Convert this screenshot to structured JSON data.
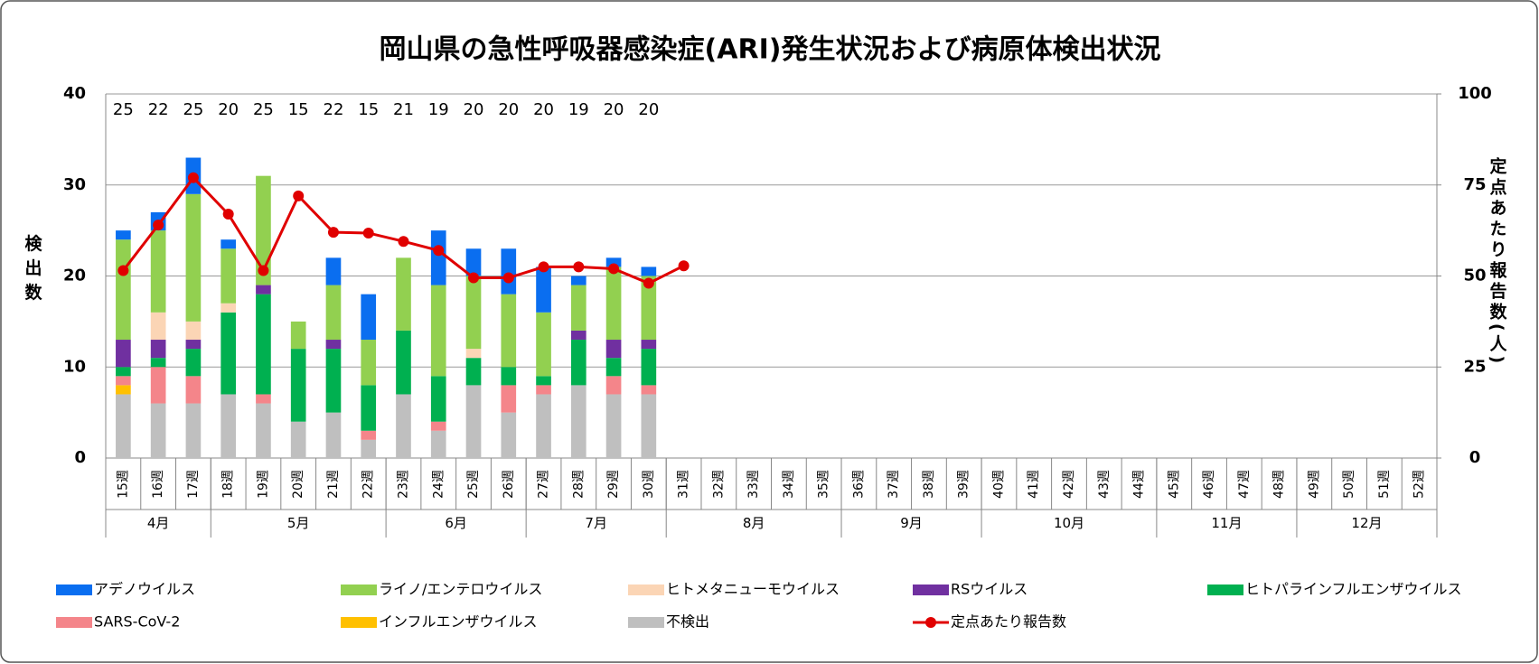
{
  "chart_data": {
    "type": "bar",
    "stacked": true,
    "title": "岡山県の急性呼吸器感染症(ARI)発生状況および病原体検出状況",
    "ylabel": "検出数",
    "y2label": "定点あたり報告数(人)",
    "categories": [
      "15週",
      "16週",
      "17週",
      "18週",
      "19週",
      "20週",
      "21週",
      "22週",
      "23週",
      "24週",
      "25週",
      "26週",
      "27週",
      "28週",
      "29週",
      "30週",
      "31週",
      "32週",
      "33週",
      "34週",
      "35週",
      "36週",
      "37週",
      "38週",
      "39週",
      "40週",
      "41週",
      "42週",
      "43週",
      "44週",
      "45週",
      "46週",
      "47週",
      "48週",
      "49週",
      "50週",
      "51週",
      "52週"
    ],
    "months": [
      "4月",
      null,
      null,
      "5月",
      null,
      null,
      null,
      null,
      "6月",
      null,
      null,
      null,
      "7月",
      null,
      null,
      null,
      "8月",
      null,
      null,
      null,
      null,
      "9月",
      null,
      null,
      null,
      "10月",
      null,
      null,
      null,
      null,
      "11月",
      null,
      null,
      null,
      "12月",
      null,
      null,
      null
    ],
    "sample_counts": [
      25,
      22,
      25,
      20,
      25,
      15,
      22,
      15,
      21,
      19,
      20,
      20,
      20,
      19,
      20,
      20,
      null,
      null,
      null,
      null,
      null,
      null,
      null,
      null,
      null,
      null,
      null,
      null,
      null,
      null,
      null,
      null,
      null,
      null,
      null,
      null,
      null,
      null
    ],
    "ylim": [
      0,
      40
    ],
    "yticks": [
      0,
      10,
      20,
      30,
      40
    ],
    "y2lim": [
      0,
      100
    ],
    "y2ticks": [
      0,
      25,
      50,
      75,
      100
    ],
    "grid": true,
    "legend": "bottom",
    "series": [
      {
        "name": "アデノウイルス",
        "color": "#0a6ef0",
        "values": [
          1,
          2,
          4,
          1,
          0,
          0,
          3,
          5,
          0,
          6,
          3,
          5,
          5,
          1,
          1,
          1,
          null,
          null,
          null,
          null,
          null,
          null,
          null,
          null,
          null,
          null,
          null,
          null,
          null,
          null,
          null,
          null,
          null,
          null,
          null,
          null,
          null,
          null
        ]
      },
      {
        "name": "ライノ/エンテロウイルス",
        "color": "#92d050",
        "values": [
          11,
          9,
          14,
          6,
          12,
          3,
          6,
          5,
          8,
          10,
          8,
          8,
          7,
          5,
          8,
          7,
          null,
          null,
          null,
          null,
          null,
          null,
          null,
          null,
          null,
          null,
          null,
          null,
          null,
          null,
          null,
          null,
          null,
          null,
          null,
          null,
          null,
          null
        ]
      },
      {
        "name": "ヒトメタニューモウイルス",
        "color": "#fbd5b5",
        "values": [
          0,
          3,
          2,
          1,
          0,
          0,
          0,
          0,
          0,
          0,
          1,
          0,
          0,
          0,
          0,
          0,
          null,
          null,
          null,
          null,
          null,
          null,
          null,
          null,
          null,
          null,
          null,
          null,
          null,
          null,
          null,
          null,
          null,
          null,
          null,
          null,
          null,
          null
        ]
      },
      {
        "name": "RSウイルス",
        "color": "#7030a0",
        "values": [
          3,
          2,
          1,
          0,
          1,
          0,
          1,
          0,
          0,
          0,
          0,
          0,
          0,
          1,
          2,
          1,
          null,
          null,
          null,
          null,
          null,
          null,
          null,
          null,
          null,
          null,
          null,
          null,
          null,
          null,
          null,
          null,
          null,
          null,
          null,
          null,
          null,
          null
        ]
      },
      {
        "name": "ヒトパラインフルエンザウイルス",
        "color": "#00b050",
        "values": [
          1,
          1,
          3,
          9,
          11,
          8,
          7,
          5,
          7,
          5,
          3,
          2,
          1,
          5,
          2,
          4,
          null,
          null,
          null,
          null,
          null,
          null,
          null,
          null,
          null,
          null,
          null,
          null,
          null,
          null,
          null,
          null,
          null,
          null,
          null,
          null,
          null,
          null
        ]
      },
      {
        "name": "SARS-CoV-2",
        "color": "#f4858a",
        "values": [
          1,
          4,
          3,
          0,
          1,
          0,
          0,
          1,
          0,
          1,
          0,
          3,
          1,
          0,
          2,
          1,
          null,
          null,
          null,
          null,
          null,
          null,
          null,
          null,
          null,
          null,
          null,
          null,
          null,
          null,
          null,
          null,
          null,
          null,
          null,
          null,
          null,
          null
        ]
      },
      {
        "name": "インフルエンザウイルス",
        "color": "#ffc000",
        "values": [
          1,
          0,
          0,
          0,
          0,
          0,
          0,
          0,
          0,
          0,
          0,
          0,
          0,
          0,
          0,
          0,
          null,
          null,
          null,
          null,
          null,
          null,
          null,
          null,
          null,
          null,
          null,
          null,
          null,
          null,
          null,
          null,
          null,
          null,
          null,
          null,
          null,
          null
        ]
      },
      {
        "name": "不検出",
        "color": "#bfbfbf",
        "values": [
          7,
          6,
          6,
          7,
          6,
          4,
          5,
          2,
          7,
          3,
          8,
          5,
          7,
          8,
          7,
          7,
          null,
          null,
          null,
          null,
          null,
          null,
          null,
          null,
          null,
          null,
          null,
          null,
          null,
          null,
          null,
          null,
          null,
          null,
          null,
          null,
          null,
          null
        ]
      },
      {
        "name": "定点あたり報告数",
        "color": "#e00000",
        "type": "line",
        "axis": "y2",
        "values": [
          51.5,
          64,
          77,
          67,
          51.5,
          72,
          62,
          61.8,
          59.5,
          57,
          49.5,
          49.5,
          52.5,
          52.5,
          52,
          48,
          52.8,
          null,
          null,
          null,
          null,
          null,
          null,
          null,
          null,
          null,
          null,
          null,
          null,
          null,
          null,
          null,
          null,
          null,
          null,
          null,
          null,
          null
        ]
      }
    ]
  }
}
